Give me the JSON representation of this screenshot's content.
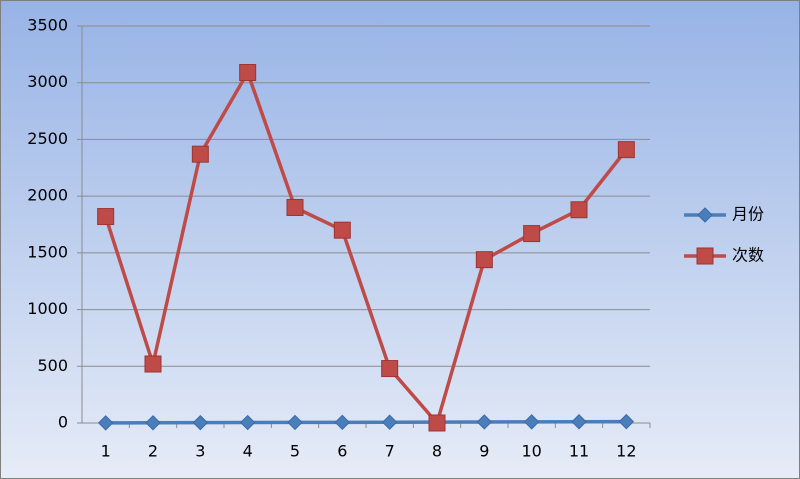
{
  "chart_data": {
    "type": "line",
    "categories": [
      "1",
      "2",
      "3",
      "4",
      "5",
      "6",
      "7",
      "8",
      "9",
      "10",
      "11",
      "12"
    ],
    "series": [
      {
        "name": "月份",
        "color": "#4a7ebb",
        "marker": "diamond",
        "values": [
          1,
          2,
          3,
          4,
          5,
          6,
          7,
          8,
          9,
          10,
          11,
          12
        ]
      },
      {
        "name": "次数",
        "color": "#be4b48",
        "marker": "square",
        "values": [
          1820,
          520,
          2370,
          3090,
          1900,
          1700,
          480,
          0,
          1440,
          1670,
          1880,
          2410
        ]
      }
    ],
    "ylim": [
      0,
      3500
    ],
    "yticks": [
      0,
      500,
      1000,
      1500,
      2000,
      2500,
      3000,
      3500
    ],
    "grid": true,
    "legend": "right"
  }
}
